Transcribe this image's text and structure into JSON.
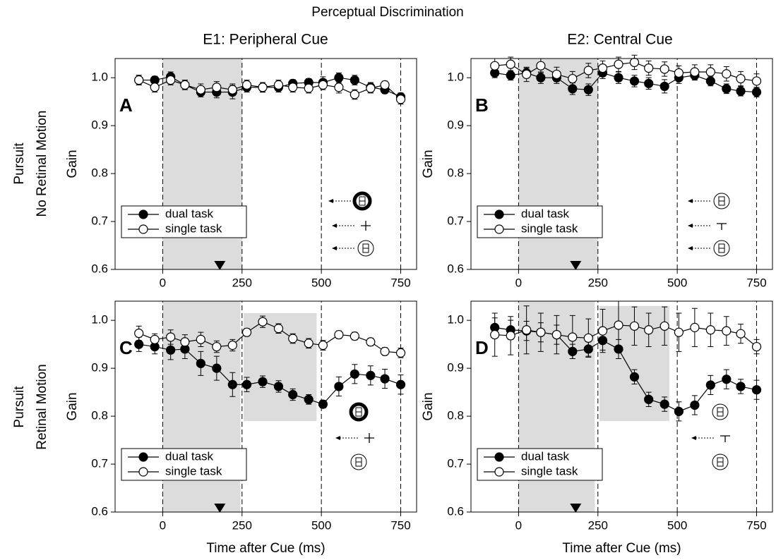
{
  "title": "Perceptual Discrimination",
  "column_titles": [
    "E1: Peripheral Cue",
    "E2: Central Cue"
  ],
  "row_labels": [
    [
      "Pursuit",
      "No Retinal Motion"
    ],
    [
      "Pursuit",
      "Retinal Motion"
    ]
  ],
  "chart_data": [
    {
      "type": "line",
      "panel_label": "A",
      "ylabel": "Gain",
      "x": [
        -75,
        -25,
        25,
        70,
        120,
        170,
        220,
        265,
        315,
        365,
        410,
        460,
        505,
        555,
        605,
        655,
        700,
        750
      ],
      "series": [
        {
          "name": "dual task",
          "color": "#000000",
          "marker_fill": "#000000",
          "values": [
            0.995,
            0.995,
            1.002,
            0.985,
            0.97,
            0.97,
            0.97,
            0.98,
            0.98,
            0.98,
            0.988,
            0.99,
            0.99,
            1.0,
            0.995,
            0.98,
            0.975,
            0.96
          ],
          "errors": [
            0.01,
            0.008,
            0.01,
            0.01,
            0.01,
            0.012,
            0.014,
            0.01,
            0.01,
            0.01,
            0.008,
            0.008,
            0.012,
            0.01,
            0.01,
            0.01,
            0.008,
            0.008
          ]
        },
        {
          "name": "single task",
          "color": "#000000",
          "marker_fill": "#ffffff",
          "values": [
            0.995,
            0.98,
            0.995,
            0.985,
            0.975,
            0.98,
            0.975,
            0.985,
            0.98,
            0.985,
            0.98,
            0.978,
            0.985,
            0.98,
            0.965,
            0.978,
            0.985,
            0.955
          ],
          "errors": [
            0.01,
            0.01,
            0.01,
            0.01,
            0.012,
            0.012,
            0.012,
            0.01,
            0.01,
            0.01,
            0.01,
            0.01,
            0.01,
            0.012,
            0.01,
            0.01,
            0.008,
            0.01
          ]
        }
      ],
      "xlim": [
        -150,
        800
      ],
      "ylim": [
        0.6,
        1.04
      ],
      "xticks": [
        0,
        250,
        500,
        750
      ],
      "yticks": [
        0.6,
        0.7,
        0.8,
        0.9,
        {
          "value": 1.0,
          "label": "1.0"
        }
      ],
      "vlines": [
        0,
        250,
        500,
        750
      ],
      "shaded_regions": [
        {
          "x": [
            0,
            250
          ]
        }
      ],
      "cue_marker": 180,
      "legend": "lower left"
    },
    {
      "type": "line",
      "panel_label": "B",
      "ylabel": "Gain",
      "x": [
        -75,
        -25,
        25,
        70,
        120,
        170,
        220,
        265,
        315,
        365,
        410,
        460,
        505,
        555,
        605,
        655,
        700,
        750
      ],
      "series": [
        {
          "name": "dual task",
          "color": "#000000",
          "marker_fill": "#000000",
          "values": [
            1.01,
            1.005,
            1.01,
            1.0,
            1.0,
            0.977,
            0.975,
            1.01,
            1.0,
            0.993,
            0.988,
            0.982,
            1.0,
            1.005,
            0.993,
            0.977,
            0.972,
            0.97
          ],
          "errors": [
            0.01,
            0.01,
            0.01,
            0.012,
            0.012,
            0.012,
            0.012,
            0.012,
            0.012,
            0.012,
            0.012,
            0.014,
            0.012,
            0.01,
            0.01,
            0.01,
            0.01,
            0.01
          ]
        },
        {
          "name": "single task",
          "color": "#000000",
          "marker_fill": "#ffffff",
          "values": [
            1.025,
            1.028,
            1.007,
            1.025,
            1.007,
            0.998,
            1.015,
            1.02,
            1.028,
            1.032,
            1.02,
            1.018,
            1.01,
            1.012,
            1.012,
            1.008,
            0.998,
            0.993
          ],
          "errors": [
            0.015,
            0.015,
            0.015,
            0.015,
            0.015,
            0.015,
            0.015,
            0.015,
            0.015,
            0.015,
            0.015,
            0.015,
            0.015,
            0.015,
            0.015,
            0.015,
            0.015,
            0.015
          ]
        }
      ],
      "xlim": [
        -150,
        800
      ],
      "ylim": [
        0.6,
        1.04
      ],
      "xticks": [
        0,
        250,
        500,
        750
      ],
      "yticks": [
        0.6,
        0.7,
        0.8,
        0.9,
        {
          "value": 1.0,
          "label": "1.0"
        }
      ],
      "vlines": [
        0,
        250,
        500,
        750
      ],
      "shaded_regions": [
        {
          "x": [
            0,
            250
          ]
        }
      ],
      "cue_marker": 180,
      "legend": "lower left"
    },
    {
      "type": "line",
      "panel_label": "C",
      "ylabel": "Gain",
      "xlabel": "Time after Cue (ms)",
      "x": [
        -75,
        -25,
        25,
        70,
        120,
        170,
        220,
        265,
        315,
        365,
        410,
        460,
        505,
        555,
        605,
        655,
        700,
        750
      ],
      "series": [
        {
          "name": "dual task",
          "color": "#000000",
          "marker_fill": "#000000",
          "values": [
            0.95,
            0.945,
            0.938,
            0.94,
            0.91,
            0.9,
            0.866,
            0.866,
            0.872,
            0.862,
            0.845,
            0.835,
            0.825,
            0.862,
            0.888,
            0.885,
            0.878,
            0.866
          ],
          "errors": [
            0.015,
            0.015,
            0.02,
            0.02,
            0.025,
            0.025,
            0.025,
            0.015,
            0.012,
            0.012,
            0.012,
            0.01,
            0.008,
            0.02,
            0.02,
            0.02,
            0.02,
            0.02
          ]
        },
        {
          "name": "single task",
          "color": "#000000",
          "marker_fill": "#ffffff",
          "values": [
            0.973,
            0.96,
            0.965,
            0.955,
            0.96,
            0.945,
            0.948,
            0.975,
            0.997,
            0.983,
            0.962,
            0.952,
            0.948,
            0.97,
            0.967,
            0.955,
            0.935,
            0.932
          ],
          "errors": [
            0.015,
            0.012,
            0.015,
            0.015,
            0.015,
            0.012,
            0.012,
            0.008,
            0.012,
            0.01,
            0.01,
            0.01,
            0.01,
            0.008,
            0.008,
            0.008,
            0.008,
            0.01
          ]
        }
      ],
      "xlim": [
        -150,
        800
      ],
      "ylim": [
        0.6,
        1.04
      ],
      "xticks": [
        0,
        250,
        500,
        750
      ],
      "yticks": [
        0.6,
        0.7,
        0.8,
        0.9,
        {
          "value": 1.0,
          "label": "1.0"
        }
      ],
      "vlines": [
        0,
        250,
        500,
        750
      ],
      "shaded_regions": [
        {
          "x": [
            0,
            245
          ]
        },
        {
          "x": [
            255,
            485
          ],
          "y": [
            0.79,
            1.015
          ]
        }
      ],
      "cue_marker": 180,
      "legend": "lower left"
    },
    {
      "type": "line",
      "panel_label": "D",
      "ylabel": "Gain",
      "xlabel": "Time after Cue (ms)",
      "x": [
        -75,
        -25,
        25,
        70,
        120,
        170,
        220,
        265,
        315,
        365,
        410,
        460,
        505,
        555,
        605,
        655,
        700,
        750
      ],
      "series": [
        {
          "name": "dual task",
          "color": "#000000",
          "marker_fill": "#000000",
          "values": [
            0.985,
            0.98,
            0.978,
            0.975,
            0.97,
            0.935,
            0.94,
            0.958,
            0.94,
            0.882,
            0.835,
            0.825,
            0.81,
            0.823,
            0.865,
            0.877,
            0.862,
            0.855
          ],
          "errors": [
            0.02,
            0.02,
            0.02,
            0.02,
            0.02,
            0.015,
            0.015,
            0.02,
            0.02,
            0.015,
            0.015,
            0.015,
            0.02,
            0.02,
            0.02,
            0.02,
            0.015,
            0.02
          ]
        },
        {
          "name": "single task",
          "color": "#000000",
          "marker_fill": "#ffffff",
          "values": [
            0.97,
            0.968,
            0.98,
            0.975,
            0.97,
            0.965,
            0.963,
            0.978,
            0.99,
            0.988,
            0.98,
            0.988,
            0.975,
            0.985,
            0.98,
            0.978,
            0.972,
            0.945
          ],
          "errors": [
            0.045,
            0.04,
            0.05,
            0.04,
            0.04,
            0.045,
            0.04,
            0.045,
            0.05,
            0.04,
            0.035,
            0.04,
            0.04,
            0.04,
            0.035,
            0.03,
            0.02,
            0.015
          ]
        }
      ],
      "xlim": [
        -150,
        800
      ],
      "ylim": [
        0.6,
        1.04
      ],
      "xticks": [
        0,
        250,
        500,
        750
      ],
      "yticks": [
        0.6,
        0.7,
        0.8,
        0.9,
        {
          "value": 1.0,
          "label": "1.0"
        }
      ],
      "vlines": [
        0,
        250,
        500,
        750
      ],
      "shaded_regions": [
        {
          "x": [
            0,
            240
          ]
        },
        {
          "x": [
            255,
            475
          ],
          "y": [
            0.79,
            1.03
          ]
        }
      ],
      "cue_marker": 180,
      "legend": "lower left"
    }
  ]
}
